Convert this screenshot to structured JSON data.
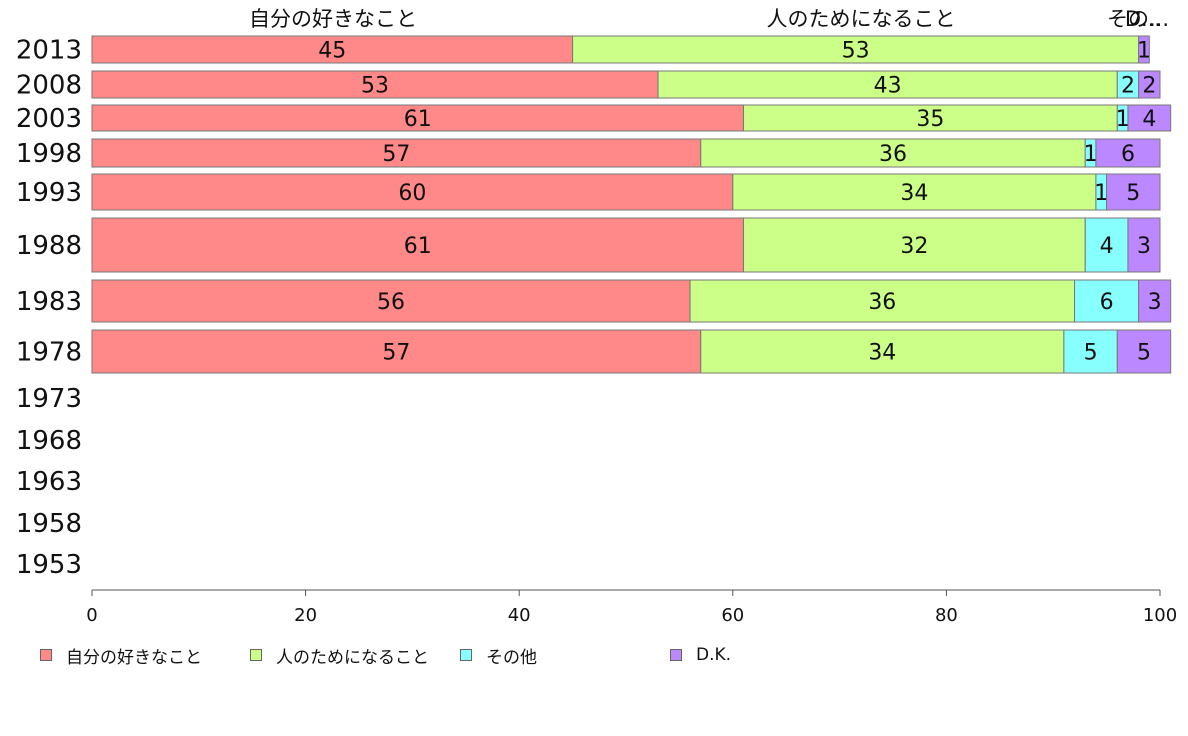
{
  "chart_data": {
    "type": "bar",
    "orientation": "horizontal",
    "stacked": true,
    "categories": [
      "2013",
      "2008",
      "2003",
      "1998",
      "1993",
      "1988",
      "1983",
      "1978",
      "1973",
      "1968",
      "1963",
      "1958",
      "1953"
    ],
    "series": [
      {
        "name": "自分の好きなこと",
        "color": "#ff8888",
        "values": [
          45,
          53,
          61,
          57,
          60,
          61,
          56,
          57,
          null,
          null,
          null,
          null,
          null
        ]
      },
      {
        "name": "人のためになること",
        "color": "#ccff88",
        "values": [
          53,
          43,
          35,
          36,
          34,
          32,
          36,
          34,
          null,
          null,
          null,
          null,
          null
        ]
      },
      {
        "name": "その他",
        "color": "#88ffff",
        "values": [
          0,
          2,
          1,
          1,
          1,
          4,
          6,
          5,
          null,
          null,
          null,
          null,
          null
        ]
      },
      {
        "name": "D.K.",
        "color": "#bb88ff",
        "values": [
          1,
          2,
          4,
          6,
          5,
          3,
          3,
          5,
          null,
          null,
          null,
          null,
          null
        ]
      }
    ],
    "top_labels": [
      "自分の好きなこと",
      "人のためになること",
      "その...",
      "D..."
    ],
    "xlim": [
      0,
      100
    ],
    "xticks": [
      "0",
      "20",
      "40",
      "60",
      "80",
      "100"
    ],
    "grid": false,
    "legend": "bottom"
  }
}
